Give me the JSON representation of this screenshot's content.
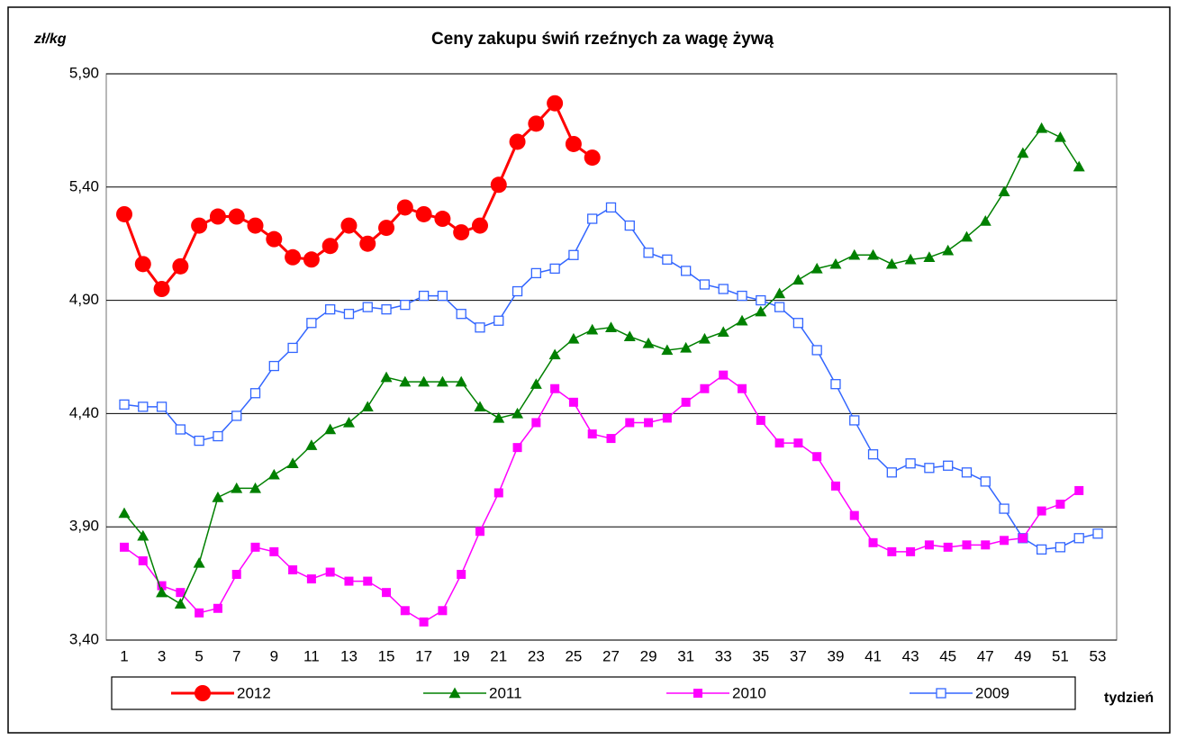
{
  "chart_data": {
    "type": "line",
    "title": "Ceny zakupu świń rzeźnych za wagę żywą",
    "y_label": "zł/kg",
    "x_label": "tydzień",
    "categories": [
      1,
      null,
      3,
      null,
      5,
      null,
      7,
      null,
      9,
      null,
      11,
      null,
      13,
      null,
      15,
      null,
      17,
      null,
      19,
      null,
      21,
      null,
      23,
      null,
      25,
      null,
      27,
      null,
      29,
      null,
      31,
      null,
      33,
      null,
      35,
      null,
      37,
      null,
      39,
      null,
      41,
      null,
      43,
      null,
      45,
      null,
      47,
      null,
      49,
      null,
      51,
      null,
      53
    ],
    "ylim": [
      3.4,
      5.9
    ],
    "yticks": [
      {
        "value": 3.4,
        "label": "3,40"
      },
      {
        "value": 3.9,
        "label": "3,90"
      },
      {
        "value": 4.4,
        "label": "4,40"
      },
      {
        "value": 4.9,
        "label": "4,90"
      },
      {
        "value": 5.4,
        "label": "5,40"
      },
      {
        "value": 5.9,
        "label": "5,90"
      }
    ],
    "grid": true,
    "legend": "bottom",
    "series": [
      {
        "name": "2012",
        "color": "#ff0000",
        "marker": "circle",
        "values": [
          5.28,
          5.06,
          4.95,
          5.05,
          5.23,
          5.27,
          5.27,
          5.23,
          5.17,
          5.09,
          5.08,
          5.14,
          5.23,
          5.15,
          5.22,
          5.31,
          5.28,
          5.26,
          5.2,
          5.23,
          5.41,
          5.6,
          5.68,
          5.77,
          5.59,
          5.53,
          null,
          null,
          null,
          null,
          null,
          null,
          null,
          null,
          null,
          null,
          null,
          null,
          null,
          null,
          null,
          null,
          null,
          null,
          null,
          null,
          null,
          null,
          null,
          null,
          null,
          null,
          null
        ]
      },
      {
        "name": "2011",
        "color": "#008000",
        "marker": "triangle",
        "values": [
          3.96,
          3.86,
          3.61,
          3.56,
          3.74,
          4.03,
          4.07,
          4.07,
          4.13,
          4.18,
          4.26,
          4.33,
          4.36,
          4.43,
          4.56,
          4.54,
          4.54,
          4.54,
          4.54,
          4.43,
          4.38,
          4.4,
          4.53,
          4.66,
          4.73,
          4.77,
          4.78,
          4.74,
          4.71,
          4.68,
          4.69,
          4.73,
          4.76,
          4.81,
          4.85,
          4.93,
          4.99,
          5.04,
          5.06,
          5.1,
          5.1,
          5.06,
          5.08,
          5.09,
          5.12,
          5.18,
          5.25,
          5.38,
          5.55,
          5.66,
          5.62,
          5.49,
          null
        ]
      },
      {
        "name": "2010",
        "color": "#ff00ff",
        "marker": "square",
        "values": [
          3.81,
          3.75,
          3.64,
          3.61,
          3.52,
          3.54,
          3.69,
          3.81,
          3.79,
          3.71,
          3.67,
          3.7,
          3.66,
          3.66,
          3.61,
          3.53,
          3.48,
          3.53,
          3.69,
          3.88,
          4.05,
          4.25,
          4.36,
          4.51,
          4.45,
          4.31,
          4.29,
          4.36,
          4.36,
          4.38,
          4.45,
          4.51,
          4.57,
          4.51,
          4.37,
          4.27,
          4.27,
          4.21,
          4.08,
          3.95,
          3.83,
          3.79,
          3.79,
          3.82,
          3.81,
          3.82,
          3.82,
          3.84,
          3.85,
          3.97,
          4.0,
          4.06,
          null
        ]
      },
      {
        "name": "2009",
        "color": "#3366ff",
        "marker": "open-square",
        "values": [
          4.44,
          4.43,
          4.43,
          4.33,
          4.28,
          4.3,
          4.39,
          4.49,
          4.61,
          4.69,
          4.8,
          4.86,
          4.84,
          4.87,
          4.86,
          4.88,
          4.92,
          4.92,
          4.84,
          4.78,
          4.81,
          4.94,
          5.02,
          5.04,
          5.1,
          5.26,
          5.31,
          5.23,
          5.11,
          5.08,
          5.03,
          4.97,
          4.95,
          4.92,
          4.9,
          4.87,
          4.8,
          4.68,
          4.53,
          4.37,
          4.22,
          4.14,
          4.18,
          4.16,
          4.17,
          4.14,
          4.1,
          3.98,
          3.85,
          3.8,
          3.81,
          3.85,
          3.87
        ]
      }
    ]
  }
}
